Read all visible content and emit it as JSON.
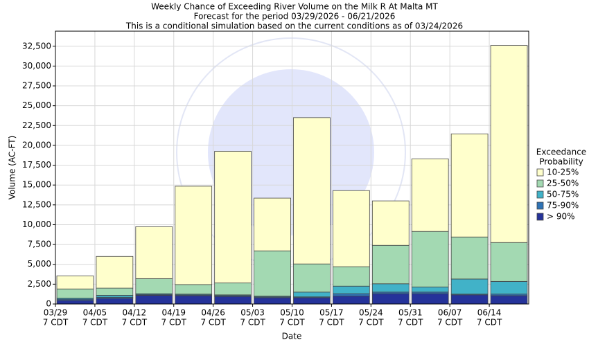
{
  "chart_data": {
    "type": "stacked_bar",
    "title": [
      "Weekly Chance of Exceeding River Volume on the Milk R At Malta MT",
      "Forecast for the period 03/29/2026 - 06/21/2026",
      "This is a conditional simulation based on the current conditions as of 03/24/2026"
    ],
    "x_label": "Date",
    "y_label": "Volume (AC-FT)",
    "categories": [
      "03/29",
      "04/05",
      "04/12",
      "04/19",
      "04/26",
      "05/03",
      "05/10",
      "05/17",
      "05/24",
      "05/31",
      "06/07",
      "06/14"
    ],
    "category_time": [
      "7 CDT",
      "7 CDT",
      "7 CDT",
      "7 CDT",
      "7 CDT",
      "7 CDT",
      "7 CDT",
      "7 CDT",
      "7 CDT",
      "7 CDT",
      "7 CDT",
      "7 CDT"
    ],
    "legend_title": [
      "Exceedance",
      "Probability"
    ],
    "series": [
      {
        "name": "> 90%",
        "color": "#25339a",
        "values": [
          450,
          700,
          1100,
          1050,
          950,
          800,
          800,
          1000,
          1300,
          1300,
          1150,
          1050
        ]
      },
      {
        "name": "75-90%",
        "color": "#2f73b5",
        "values": [
          150,
          150,
          100,
          100,
          100,
          100,
          100,
          300,
          200,
          200,
          100,
          200
        ]
      },
      {
        "name": "50-75%",
        "color": "#41b2c8",
        "values": [
          150,
          250,
          100,
          100,
          100,
          100,
          600,
          950,
          1050,
          650,
          1900,
          1600
        ]
      },
      {
        "name": "25-50%",
        "color": "#a3d9b2",
        "values": [
          1150,
          900,
          1900,
          1200,
          1500,
          5700,
          3550,
          2450,
          4850,
          7000,
          5300,
          4900
        ]
      },
      {
        "name": "10-25%",
        "color": "#ffffcc",
        "values": [
          1650,
          4000,
          6550,
          12400,
          16600,
          6650,
          18450,
          9600,
          5600,
          9150,
          13000,
          24850
        ]
      }
    ],
    "ylim": [
      0,
      34400
    ],
    "yticks": [
      0,
      {
        "value": 2500,
        "label": "2,500"
      },
      {
        "value": 5000,
        "label": "5,000"
      },
      {
        "value": 7500,
        "label": "7,500"
      },
      {
        "value": 10000,
        "label": "10,000"
      },
      {
        "value": 12500,
        "label": "12,500"
      },
      {
        "value": 15000,
        "label": "15,000"
      },
      {
        "value": 17500,
        "label": "17,500"
      },
      {
        "value": 20000,
        "label": "20,000"
      },
      {
        "value": 22500,
        "label": "22,500"
      },
      {
        "value": 25000,
        "label": "25,000"
      },
      {
        "value": 27500,
        "label": "27,500"
      },
      {
        "value": 30000,
        "label": "30,000"
      },
      {
        "value": 32500,
        "label": "32,500"
      }
    ],
    "grid": true
  }
}
